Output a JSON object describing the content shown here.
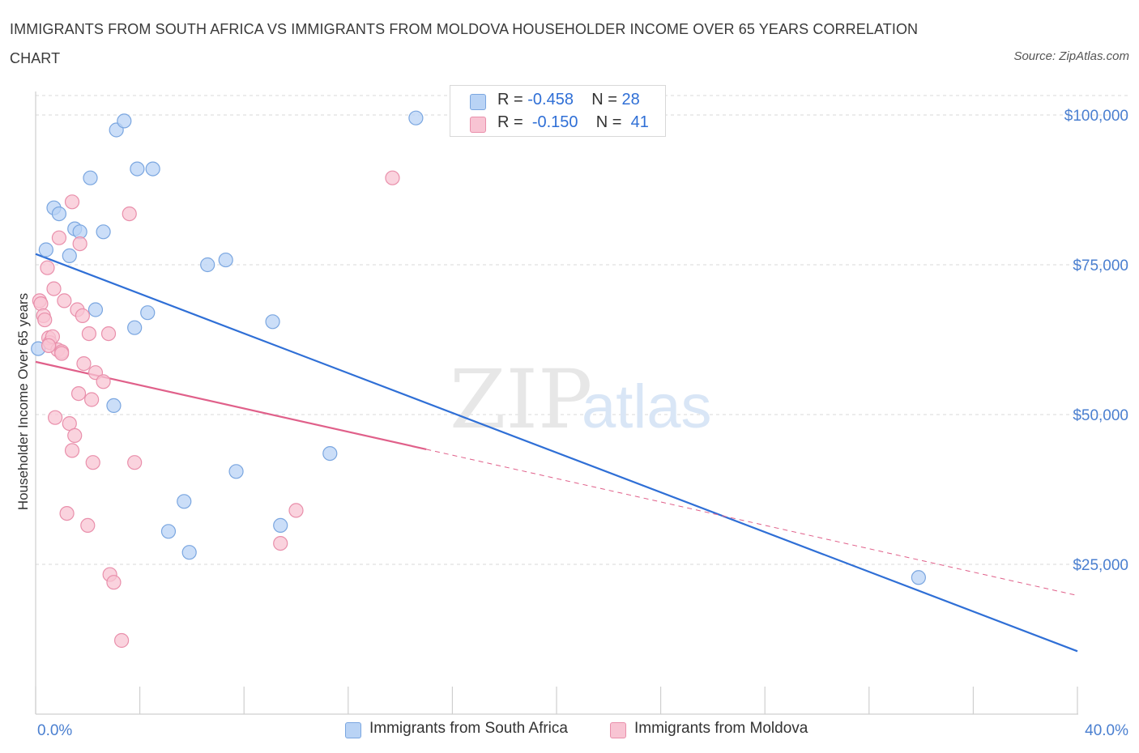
{
  "title": "IMMIGRANTS FROM SOUTH AFRICA VS IMMIGRANTS FROM MOLDOVA HOUSEHOLDER INCOME OVER 65 YEARS CORRELATION CHART",
  "source": "Source: ZipAtlas.com",
  "watermark": {
    "zip": "ZIP",
    "atlas": "atlas"
  },
  "colors": {
    "south_africa_fill": "#b9d3f5",
    "south_africa_stroke": "#7aa6e0",
    "south_africa_line": "#2f6fd6",
    "moldova_fill": "#f8c4d3",
    "moldova_stroke": "#e98fab",
    "moldova_line": "#e0608a",
    "grid": "#d9d9d9",
    "tick_text": "#4a7fd0"
  },
  "legend": {
    "rows": [
      {
        "r_label": "R =",
        "r_value": "-0.458",
        "n_label": "N =",
        "n_value": "28"
      },
      {
        "r_label": "R =",
        "r_value": "-0.150",
        "n_label": "N =",
        "n_value": "41"
      }
    ]
  },
  "chart_data": {
    "type": "scatter",
    "title": "IMMIGRANTS FROM SOUTH AFRICA VS IMMIGRANTS FROM MOLDOVA HOUSEHOLDER INCOME OVER 65 YEARS CORRELATION CHART",
    "xlabel": "",
    "ylabel": "Householder Income Over 65 years",
    "xlim": [
      0,
      40
    ],
    "ylim": [
      0,
      105000
    ],
    "x_tick_labels": [
      "0.0%",
      "40.0%"
    ],
    "y_ticks": [
      25000,
      50000,
      75000,
      100000
    ],
    "y_tick_labels": [
      "$25,000",
      "$50,000",
      "$75,000",
      "$100,000"
    ],
    "grid": true,
    "series": [
      {
        "name": "Immigrants from South Africa",
        "points": [
          {
            "x": 0.1,
            "y": 61000
          },
          {
            "x": 0.4,
            "y": 77500
          },
          {
            "x": 0.7,
            "y": 84500
          },
          {
            "x": 0.9,
            "y": 83500
          },
          {
            "x": 1.3,
            "y": 76500
          },
          {
            "x": 1.5,
            "y": 81000
          },
          {
            "x": 1.7,
            "y": 80500
          },
          {
            "x": 2.1,
            "y": 89500
          },
          {
            "x": 2.3,
            "y": 67500
          },
          {
            "x": 2.6,
            "y": 80500
          },
          {
            "x": 3.0,
            "y": 51500
          },
          {
            "x": 3.1,
            "y": 97500
          },
          {
            "x": 3.4,
            "y": 99000
          },
          {
            "x": 3.8,
            "y": 64500
          },
          {
            "x": 3.9,
            "y": 91000
          },
          {
            "x": 4.3,
            "y": 67000
          },
          {
            "x": 4.5,
            "y": 91000
          },
          {
            "x": 5.1,
            "y": 30500
          },
          {
            "x": 5.7,
            "y": 35500
          },
          {
            "x": 5.9,
            "y": 27000
          },
          {
            "x": 6.6,
            "y": 75000
          },
          {
            "x": 7.3,
            "y": 75800
          },
          {
            "x": 7.7,
            "y": 40500
          },
          {
            "x": 9.1,
            "y": 65500
          },
          {
            "x": 9.4,
            "y": 31500
          },
          {
            "x": 11.3,
            "y": 43500
          },
          {
            "x": 14.6,
            "y": 99500
          },
          {
            "x": 33.9,
            "y": 22800
          }
        ],
        "trend": {
          "x_start": 0,
          "y_start": 76800,
          "x_end": 40,
          "y_end": 10500,
          "dashed_after": null
        }
      },
      {
        "name": "Immigrants from Moldova",
        "points": [
          {
            "x": 0.15,
            "y": 69000
          },
          {
            "x": 0.2,
            "y": 68500
          },
          {
            "x": 0.3,
            "y": 66500
          },
          {
            "x": 0.35,
            "y": 65800
          },
          {
            "x": 0.45,
            "y": 74500
          },
          {
            "x": 0.5,
            "y": 62800
          },
          {
            "x": 0.55,
            "y": 62000
          },
          {
            "x": 0.65,
            "y": 63000
          },
          {
            "x": 0.7,
            "y": 71000
          },
          {
            "x": 0.75,
            "y": 49500
          },
          {
            "x": 0.85,
            "y": 60800
          },
          {
            "x": 0.9,
            "y": 79500
          },
          {
            "x": 1.0,
            "y": 60500
          },
          {
            "x": 1.1,
            "y": 69000
          },
          {
            "x": 1.2,
            "y": 33500
          },
          {
            "x": 1.3,
            "y": 48500
          },
          {
            "x": 1.4,
            "y": 44000
          },
          {
            "x": 1.4,
            "y": 85500
          },
          {
            "x": 1.5,
            "y": 46500
          },
          {
            "x": 1.6,
            "y": 67500
          },
          {
            "x": 1.65,
            "y": 53500
          },
          {
            "x": 1.7,
            "y": 78500
          },
          {
            "x": 1.8,
            "y": 66500
          },
          {
            "x": 1.85,
            "y": 58500
          },
          {
            "x": 2.0,
            "y": 31500
          },
          {
            "x": 2.05,
            "y": 63500
          },
          {
            "x": 2.15,
            "y": 52500
          },
          {
            "x": 2.2,
            "y": 42000
          },
          {
            "x": 2.3,
            "y": 57000
          },
          {
            "x": 2.6,
            "y": 55500
          },
          {
            "x": 2.8,
            "y": 63500
          },
          {
            "x": 2.85,
            "y": 23300
          },
          {
            "x": 3.0,
            "y": 22000
          },
          {
            "x": 3.3,
            "y": 12300
          },
          {
            "x": 3.6,
            "y": 83500
          },
          {
            "x": 3.8,
            "y": 42000
          },
          {
            "x": 9.4,
            "y": 28500
          },
          {
            "x": 10.0,
            "y": 34000
          },
          {
            "x": 13.7,
            "y": 89500
          },
          {
            "x": 0.5,
            "y": 61500
          },
          {
            "x": 1.0,
            "y": 60200
          }
        ],
        "trend": {
          "x_start": 0,
          "y_start": 58800,
          "x_end": 15,
          "y_end": 44200,
          "dashed_to_x": 40,
          "dashed_to_y": 19800
        }
      }
    ]
  },
  "bottom_legend": [
    "Immigrants from South Africa",
    "Immigrants from Moldova"
  ]
}
